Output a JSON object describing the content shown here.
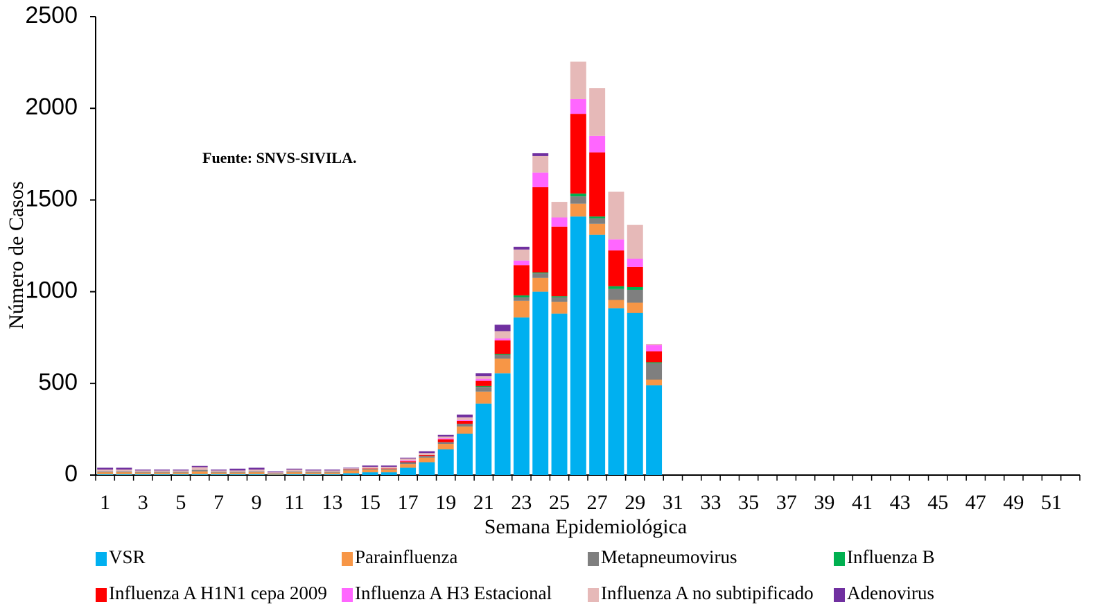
{
  "chart_data": {
    "type": "stacked_bar",
    "xlabel": "Semana Epidemiológica",
    "ylabel": "Número de Casos",
    "annotation": "Fuente: SNVS-SIVILA.",
    "categories": [
      1,
      null,
      3,
      null,
      5,
      null,
      7,
      null,
      9,
      null,
      11,
      null,
      13,
      null,
      15,
      null,
      17,
      null,
      19,
      null,
      21,
      null,
      23,
      null,
      25,
      null,
      27,
      null,
      29,
      null,
      31,
      null,
      33,
      null,
      35,
      null,
      37,
      null,
      39,
      null,
      41,
      null,
      43,
      null,
      45,
      null,
      47,
      null,
      49,
      null,
      51,
      null
    ],
    "ylim": [
      0,
      2500
    ],
    "yticks": [
      0,
      500,
      1000,
      1500,
      2000,
      2500
    ],
    "grid": false,
    "series": [
      {
        "name": "VSR",
        "color": "#00b0f0",
        "values": [
          5,
          5,
          5,
          5,
          5,
          5,
          5,
          5,
          5,
          2,
          5,
          5,
          5,
          10,
          15,
          15,
          40,
          70,
          140,
          225,
          390,
          555,
          860,
          1000,
          880,
          1410,
          1310,
          910,
          885,
          490,
          null,
          null,
          null,
          null,
          null,
          null,
          null,
          null,
          null,
          null,
          null,
          null,
          null,
          null,
          null,
          null,
          null,
          null,
          null,
          null,
          null,
          null
        ]
      },
      {
        "name": "Parainfluenza",
        "color": "#f79646",
        "values": [
          10,
          10,
          8,
          8,
          8,
          15,
          8,
          8,
          10,
          5,
          10,
          8,
          8,
          15,
          15,
          15,
          20,
          25,
          30,
          40,
          65,
          80,
          90,
          75,
          65,
          70,
          60,
          45,
          55,
          30,
          null,
          null,
          null,
          null,
          null,
          null,
          null,
          null,
          null,
          null,
          null,
          null,
          null,
          null,
          null,
          null,
          null,
          null,
          null,
          null,
          null,
          null
        ]
      },
      {
        "name": "Metapneumovirus",
        "color": "#7f7f7f",
        "values": [
          5,
          5,
          5,
          5,
          5,
          8,
          5,
          5,
          5,
          3,
          5,
          5,
          5,
          5,
          5,
          5,
          10,
          10,
          10,
          15,
          25,
          20,
          20,
          25,
          25,
          40,
          30,
          60,
          70,
          90,
          null,
          null,
          null,
          null,
          null,
          null,
          null,
          null,
          null,
          null,
          null,
          null,
          null,
          null,
          null,
          null,
          null,
          null,
          null,
          null,
          null,
          null
        ]
      },
      {
        "name": "Influenza B",
        "color": "#00b050",
        "values": [
          0,
          0,
          0,
          0,
          0,
          0,
          0,
          0,
          0,
          0,
          0,
          0,
          0,
          0,
          0,
          0,
          0,
          0,
          0,
          0,
          5,
          5,
          10,
          5,
          5,
          15,
          10,
          15,
          15,
          5,
          null,
          null,
          null,
          null,
          null,
          null,
          null,
          null,
          null,
          null,
          null,
          null,
          null,
          null,
          null,
          null,
          null,
          null,
          null,
          null,
          null,
          null
        ]
      },
      {
        "name": "Influenza A H1N1 cepa 2009",
        "color": "#ff0000",
        "values": [
          0,
          0,
          0,
          0,
          0,
          0,
          0,
          0,
          0,
          0,
          0,
          0,
          0,
          2,
          2,
          2,
          5,
          5,
          15,
          15,
          30,
          75,
          165,
          465,
          380,
          435,
          350,
          195,
          110,
          60,
          null,
          null,
          null,
          null,
          null,
          null,
          null,
          null,
          null,
          null,
          null,
          null,
          null,
          null,
          null,
          null,
          null,
          null,
          null,
          null,
          null,
          null
        ]
      },
      {
        "name": "Influenza A H3 Estacional",
        "color": "#ff66ff",
        "values": [
          0,
          0,
          0,
          0,
          0,
          0,
          0,
          0,
          0,
          0,
          0,
          0,
          0,
          0,
          0,
          0,
          5,
          0,
          5,
          5,
          10,
          10,
          25,
          80,
          50,
          80,
          90,
          60,
          45,
          35,
          null,
          null,
          null,
          null,
          null,
          null,
          null,
          null,
          null,
          null,
          null,
          null,
          null,
          null,
          null,
          null,
          null,
          null,
          null,
          null,
          null,
          null
        ]
      },
      {
        "name": "Influenza A no subtipificado",
        "color": "#e6b9b8",
        "values": [
          10,
          10,
          7,
          7,
          7,
          15,
          7,
          7,
          10,
          5,
          10,
          7,
          7,
          5,
          8,
          8,
          10,
          10,
          10,
          15,
          15,
          40,
          60,
          90,
          85,
          205,
          260,
          260,
          185,
          5,
          null,
          null,
          null,
          null,
          null,
          null,
          null,
          null,
          null,
          null,
          null,
          null,
          null,
          null,
          null,
          null,
          null,
          null,
          null,
          null,
          null,
          null
        ]
      },
      {
        "name": "Adenovirus",
        "color": "#7030a0",
        "values": [
          10,
          10,
          5,
          5,
          5,
          7,
          5,
          10,
          10,
          5,
          5,
          5,
          5,
          3,
          7,
          7,
          5,
          10,
          10,
          15,
          15,
          35,
          15,
          15,
          0,
          0,
          0,
          0,
          0,
          0,
          null,
          null,
          null,
          null,
          null,
          null,
          null,
          null,
          null,
          null,
          null,
          null,
          null,
          null,
          null,
          null,
          null,
          null,
          null,
          null,
          null,
          null
        ]
      }
    ]
  }
}
